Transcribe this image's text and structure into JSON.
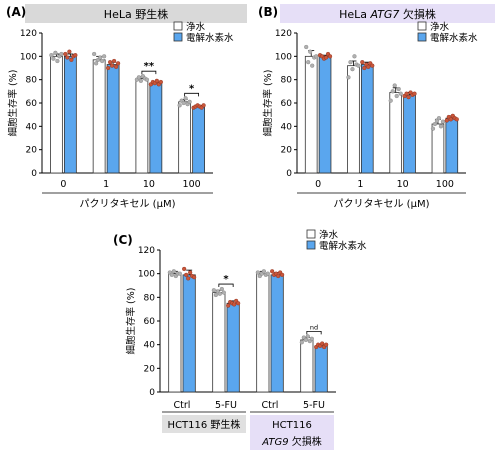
{
  "colors": {
    "control_bar": "#ffffff",
    "treatment_bar": "#5aa6ee",
    "bar_edge": "#333333",
    "control_dot": "#b0b0b0",
    "treatment_dot": "#c9563a",
    "panelA_header": "#d9d9d9",
    "panelB_header": "#e6dff7",
    "groupC_left": "#e0e0e0",
    "groupC_right": "#e6dff7"
  },
  "legend": {
    "control": "浄水",
    "treatment": "電解水素水"
  },
  "chart_data": [
    {
      "panel": "(A)",
      "type": "bar",
      "title_parts": [
        {
          "text": "HeLa 野生株",
          "italic": false
        }
      ],
      "ylabel": "細胞生存率 (%)",
      "xlabel": "パクリタキセル (µM)",
      "ylim": [
        0,
        120
      ],
      "yticks": [
        "0",
        "20",
        "40",
        "60",
        "80",
        "100",
        "120"
      ],
      "categories": [
        "0",
        "1",
        "10",
        "100"
      ],
      "series": [
        {
          "name": "浄水",
          "values": [
            100,
            97,
            81,
            61
          ],
          "errors": [
            2,
            3,
            1.5,
            2
          ]
        },
        {
          "name": "電解水素水",
          "values": [
            100,
            93,
            77,
            57
          ],
          "errors": [
            2,
            2,
            1,
            1
          ]
        }
      ],
      "points": [
        [
          [
            101,
            98,
            103,
            96,
            100,
            102
          ],
          [
            102,
            99,
            104,
            97,
            100,
            101
          ]
        ],
        [
          [
            102,
            94,
            97,
            99,
            96,
            100
          ],
          [
            90,
            95,
            92,
            96,
            91,
            94
          ]
        ],
        [
          [
            80,
            82,
            79,
            83,
            81,
            80
          ],
          [
            76,
            78,
            77,
            79,
            76,
            78
          ]
        ],
        [
          [
            58,
            62,
            60,
            64,
            59,
            61
          ],
          [
            56,
            57,
            58,
            57,
            56,
            58
          ]
        ]
      ],
      "annotations": [
        {
          "category": 2,
          "label": "**"
        },
        {
          "category": 3,
          "label": "*"
        }
      ]
    },
    {
      "panel": "(B)",
      "type": "bar",
      "title_parts": [
        {
          "text": "HeLa ",
          "italic": false
        },
        {
          "text": "ATG7",
          "italic": true
        },
        {
          "text": " 欠損株",
          "italic": false
        }
      ],
      "ylabel": "細胞生存率 (%)",
      "xlabel": "パクリタキセル (µM)",
      "ylim": [
        0,
        120
      ],
      "yticks": [
        "0",
        "20",
        "40",
        "60",
        "80",
        "100",
        "120"
      ],
      "categories": [
        "0",
        "1",
        "10",
        "100"
      ],
      "series": [
        {
          "name": "浄水",
          "values": [
            100,
            92,
            69,
            42
          ],
          "errors": [
            5,
            4,
            4,
            4
          ]
        },
        {
          "name": "電解水素水",
          "values": [
            100,
            93,
            67,
            47
          ],
          "errors": [
            1,
            2,
            2,
            2
          ]
        }
      ],
      "points": [
        [
          [
            108,
            95,
            104,
            92,
            99,
            100
          ],
          [
            101,
            100,
            98,
            99,
            102,
            100
          ]
        ],
        [
          [
            82,
            95,
            89,
            100,
            93,
            92
          ],
          [
            95,
            90,
            93,
            91,
            94,
            92
          ]
        ],
        [
          [
            62,
            70,
            75,
            66,
            72,
            68
          ],
          [
            66,
            68,
            65,
            69,
            67,
            68
          ]
        ],
        [
          [
            38,
            42,
            45,
            47,
            40,
            44
          ],
          [
            45,
            48,
            46,
            49,
            47,
            46
          ]
        ]
      ],
      "annotations": []
    },
    {
      "panel": "(C)",
      "type": "bar",
      "ylabel": "細胞生存率 (%)",
      "ylim": [
        0,
        120
      ],
      "yticks": [
        "0",
        "20",
        "40",
        "60",
        "80",
        "100",
        "120"
      ],
      "categories": [
        "Ctrl",
        "5-FU",
        "Ctrl",
        "5-FU"
      ],
      "groups": [
        {
          "label_parts": [
            {
              "text": "HCT116 野生株",
              "italic": false
            }
          ],
          "categories": [
            0,
            1
          ]
        },
        {
          "label_parts": [
            {
              "text": "HCT116",
              "italic": false
            }
          ],
          "label_parts_line2": [
            {
              "text": "ATG9",
              "italic": true
            },
            {
              "text": " 欠損株",
              "italic": false
            }
          ],
          "categories": [
            2,
            3
          ]
        }
      ],
      "series": [
        {
          "name": "浄水",
          "values": [
            100,
            84,
            100,
            44
          ],
          "errors": [
            2,
            2,
            2,
            2
          ]
        },
        {
          "name": "電解水素水",
          "values": [
            99,
            75,
            99,
            39
          ],
          "errors": [
            4,
            2,
            2,
            1
          ]
        }
      ],
      "points": [
        [
          [
            101,
            99,
            102,
            98,
            100,
            100
          ],
          [
            104,
            99,
            96,
            101,
            98,
            97
          ]
        ],
        [
          [
            86,
            82,
            85,
            83,
            87,
            84
          ],
          [
            73,
            76,
            75,
            74,
            77,
            75
          ]
        ],
        [
          [
            101,
            98,
            100,
            102,
            99,
            100
          ],
          [
            102,
            99,
            100,
            98,
            101,
            99
          ]
        ],
        [
          [
            42,
            46,
            44,
            47,
            43,
            45
          ],
          [
            38,
            40,
            39,
            41,
            38,
            40
          ]
        ]
      ],
      "annotations": [
        {
          "category": 1,
          "label": "*"
        },
        {
          "category": 3,
          "label": "nd"
        }
      ]
    }
  ]
}
